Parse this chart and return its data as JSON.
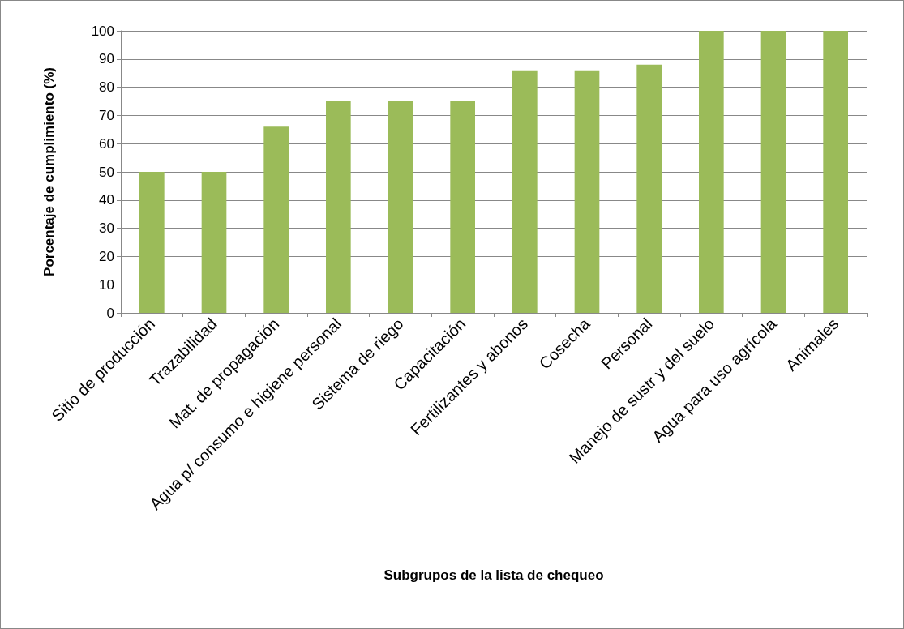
{
  "chart_data": {
    "type": "bar",
    "xlabel": "Subgrupos de la lista de chequeo",
    "ylabel": "Porcentaje de cumplimiento (%)",
    "categories": [
      "Sitio de producción",
      "Trazabilidad",
      "Mat. de propagación",
      "Agua p/ consumo e higiene personal",
      "Sistema de riego",
      "Capacitación",
      "Fertilizantes y abonos",
      "Cosecha",
      "Personal",
      "Manejo de sustr y del suelo",
      "Agua para uso agrícola",
      "Animales"
    ],
    "values": [
      50,
      50,
      66,
      75,
      75,
      75,
      86,
      86,
      88,
      100,
      100,
      100
    ],
    "color": "#9bbb59",
    "ylim": [
      0,
      100
    ],
    "yticks": [
      0,
      10,
      20,
      30,
      40,
      50,
      60,
      70,
      80,
      90,
      100
    ],
    "grid": "y"
  }
}
